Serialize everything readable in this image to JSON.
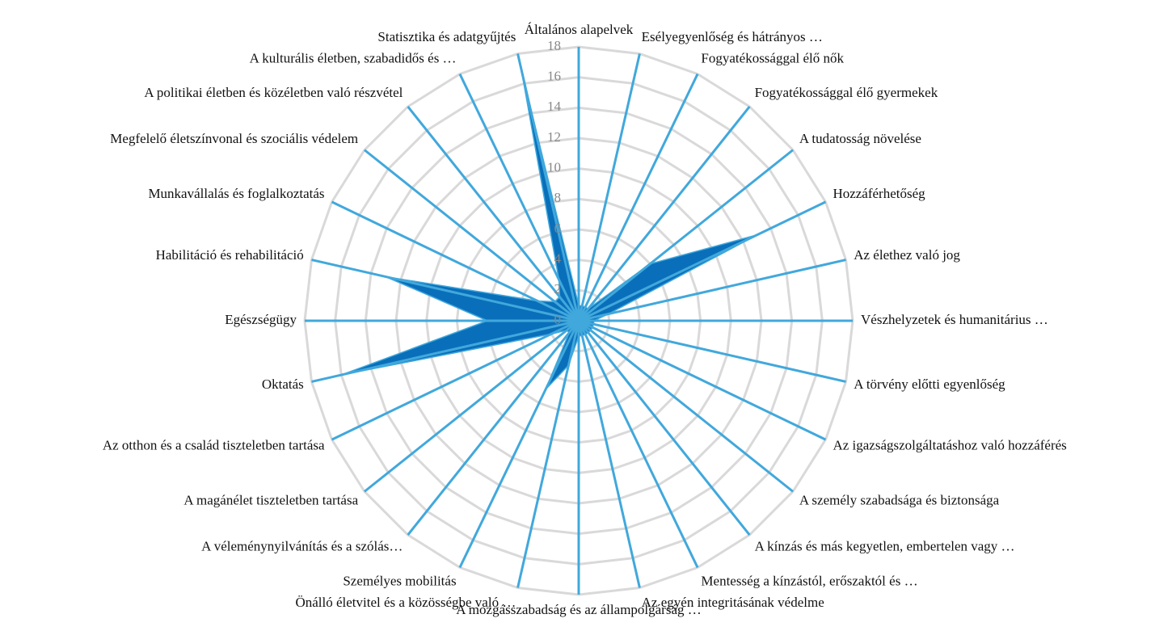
{
  "chart_data": {
    "type": "radar",
    "categories": [
      "Általános alapelvek",
      "Esélyegyenlőség és hátrányos …",
      "Fogyatékossággal élő nők",
      "Fogyatékossággal élő gyermekek",
      "A tudatosság növelése",
      "Hozzáférhetőség",
      "Az élethez való jog",
      "Vészhelyzetek és humanitárius …",
      "A törvény előtti egyenlőség",
      "Az igazságszolgáltatáshoz való hozzáférés",
      "A személy szabadsága és biztonsága",
      "A kínzás és más kegyetlen, embertelen vagy …",
      "Mentesség a kínzástól, erőszaktól és …",
      "Az egyén integritásának védelme",
      "A mozgásszabadság és az állampolgárság …",
      "Önálló életvitel és a közösségbe való …",
      "Személyes mobilitás",
      "A véleménynyilvánítás és a szólás…",
      "A magánélet tiszteletben tartása",
      "Az otthon és a család tiszteletben tartása",
      "Oktatás",
      "Egészségügy",
      "Habilitáció és rehabilitáció",
      "Munkavállalás és foglalkoztatás",
      "Megfelelő életszínvonal és szociális védelem",
      "A politikai életben és közéletben való részvétel",
      "A kulturális életben, szabadidős és …",
      "Statisztika és adatgyűjtés"
    ],
    "values": [
      1,
      1,
      1,
      1,
      6,
      13,
      2,
      1,
      1,
      1,
      1,
      1,
      1,
      1,
      1,
      3,
      5,
      1,
      1,
      2,
      16,
      6,
      13,
      3,
      2,
      2,
      3,
      17
    ],
    "color": "#0a6fba",
    "axis_color": "#41a8dc",
    "grid_color": "#d9d9d9",
    "ylim": [
      0,
      18
    ],
    "yticks": [
      0,
      2,
      4,
      6,
      8,
      10,
      12,
      14,
      16,
      18
    ],
    "grid": true
  }
}
